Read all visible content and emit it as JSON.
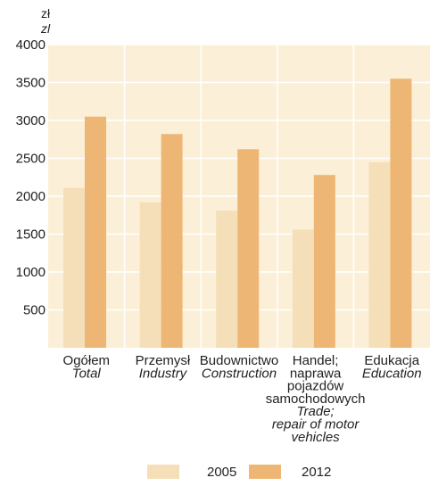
{
  "chart_data": {
    "type": "bar",
    "title": "",
    "unit_label_pl": "zł",
    "unit_label_en": "zl",
    "ylim": [
      0,
      4000
    ],
    "yticks": [
      500,
      1000,
      1500,
      2000,
      2500,
      3000,
      3500,
      4000
    ],
    "ytick_labels": [
      "500",
      "1000",
      "1500",
      "2000",
      "2500",
      "3000",
      "3500",
      "4000"
    ],
    "grid": true,
    "legend_position": "bottom",
    "categories": [
      {
        "lines": [
          "Ogółem"
        ],
        "lines_italic": [
          "Total"
        ]
      },
      {
        "lines": [
          "Przemysł"
        ],
        "lines_italic": [
          "Industry"
        ]
      },
      {
        "lines": [
          "Budownictwo"
        ],
        "lines_italic": [
          "Construction"
        ]
      },
      {
        "lines": [
          "Handel;",
          "naprawa",
          "pojazdów",
          "samochodowych"
        ],
        "lines_italic": [
          "Trade;",
          "repair of motor",
          "vehicles"
        ]
      },
      {
        "lines": [
          "Edukacja"
        ],
        "lines_italic": [
          "Education"
        ]
      }
    ],
    "series": [
      {
        "name": "2005",
        "color": "#f5dfb9",
        "values": [
          2110,
          1920,
          1810,
          1560,
          2450
        ]
      },
      {
        "name": "2012",
        "color": "#eeb674",
        "values": [
          3050,
          2820,
          2620,
          2280,
          3550
        ]
      }
    ],
    "plot_background": "#fbf0d7",
    "grid_color": "#ffffff"
  }
}
